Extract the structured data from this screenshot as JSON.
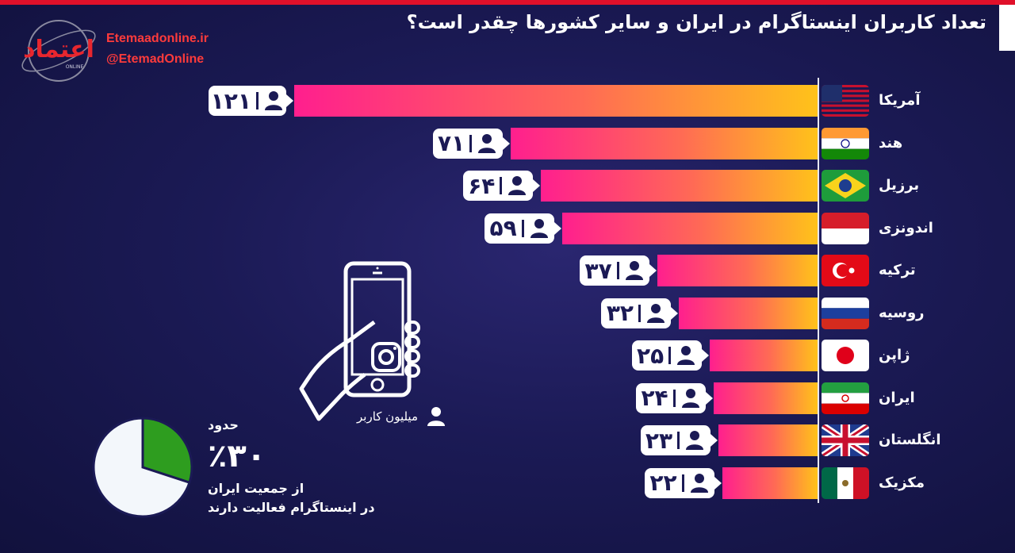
{
  "header": {
    "title": "تعداد کاربران اینستاگرام در ایران و سایر کشورها چقدر است؟",
    "site": "Etemaadonline.ir",
    "handle": "@EtemadOnline",
    "logo_text": "اعتماد",
    "logo_sub": "ONLINE"
  },
  "legend": {
    "label": "میلیون کاربر",
    "icon": "user-icon"
  },
  "chart_data": [
    {
      "type": "bar",
      "orientation": "horizontal",
      "unit": "میلیون کاربر",
      "categories": [
        "آمریکا",
        "هند",
        "برزیل",
        "اندونزی",
        "ترکیه",
        "روسیه",
        "ژاپن",
        "ایران",
        "انگلستان",
        "مکزیک"
      ],
      "values": [
        121,
        71,
        64,
        59,
        37,
        32,
        25,
        24,
        23,
        22
      ],
      "value_labels": [
        "۱۲۱",
        "۷۱",
        "۶۴",
        "۵۹",
        "۳۷",
        "۳۲",
        "۲۵",
        "۲۴",
        "۲۳",
        "۲۲"
      ],
      "flags": [
        "usa",
        "india",
        "brazil",
        "indonesia",
        "turkey",
        "russia",
        "japan",
        "iran",
        "uk",
        "mexico"
      ],
      "bar_gradient": [
        "#ff1f8e",
        "#ff6a55",
        "#ffc21a"
      ]
    },
    {
      "type": "pie",
      "values": [
        30,
        70
      ],
      "colors": [
        "#2e9d1f",
        "#f3f7fb"
      ]
    }
  ],
  "note": {
    "line1": "حدود",
    "line2": "٪۳۰",
    "line3": "از جمعیت ایران",
    "line4": "در اینستاگرام فعالیت دارند"
  }
}
